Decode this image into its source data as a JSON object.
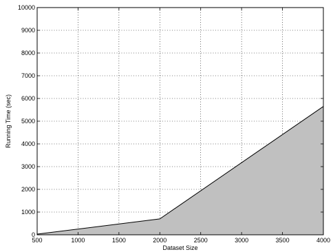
{
  "chart_data": {
    "type": "area",
    "xlabel": "Dataset Size",
    "ylabel": "Running Time (sec)",
    "xlim": [
      500,
      4000
    ],
    "ylim": [
      0,
      10000
    ],
    "x_ticks": [
      500,
      1000,
      1500,
      2000,
      2500,
      3000,
      3500,
      4000
    ],
    "y_ticks": [
      0,
      1000,
      2000,
      3000,
      4000,
      5000,
      6000,
      7000,
      8000,
      9000,
      10000
    ],
    "grid": true,
    "grid_style": "dotted",
    "series": [
      {
        "x": [
          500,
          2000,
          4000
        ],
        "y": [
          30,
          700,
          5650
        ],
        "fill_color": "#c0c0c0",
        "line_color": "#000000"
      }
    ]
  }
}
